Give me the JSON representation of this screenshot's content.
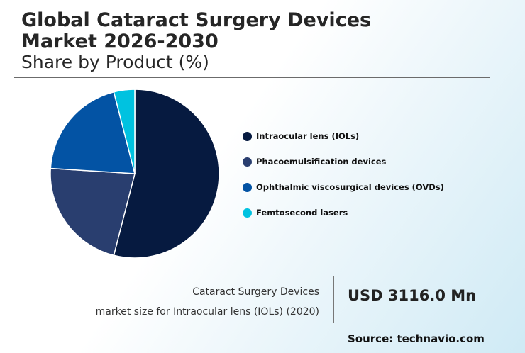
{
  "header": {
    "title_line1": "Global Cataract Surgery Devices",
    "title_line2": "Market 2026-2030",
    "subtitle": "Share by Product (%)"
  },
  "chart_data": {
    "type": "pie",
    "title": "Global Cataract Surgery Devices Market 2026-2030",
    "subtitle": "Share by Product (%)",
    "legend_position": "right",
    "categories": [
      "Intraocular lens (IOLs)",
      "Phacoemulsification devices",
      "Ophthalmic viscosurgical devices (OVDs)",
      "Femtosecond lasers"
    ],
    "values": [
      54,
      22,
      20,
      4
    ],
    "colors": [
      "#061a40",
      "#293e6f",
      "#0353a4",
      "#00c2e0"
    ]
  },
  "footer": {
    "caption_line1": "Cataract Surgery Devices",
    "caption_line2": "market size for Intraocular lens (IOLs) (2020)",
    "market_value": "USD 3116.0 Mn",
    "source": "Source: technavio.com"
  }
}
